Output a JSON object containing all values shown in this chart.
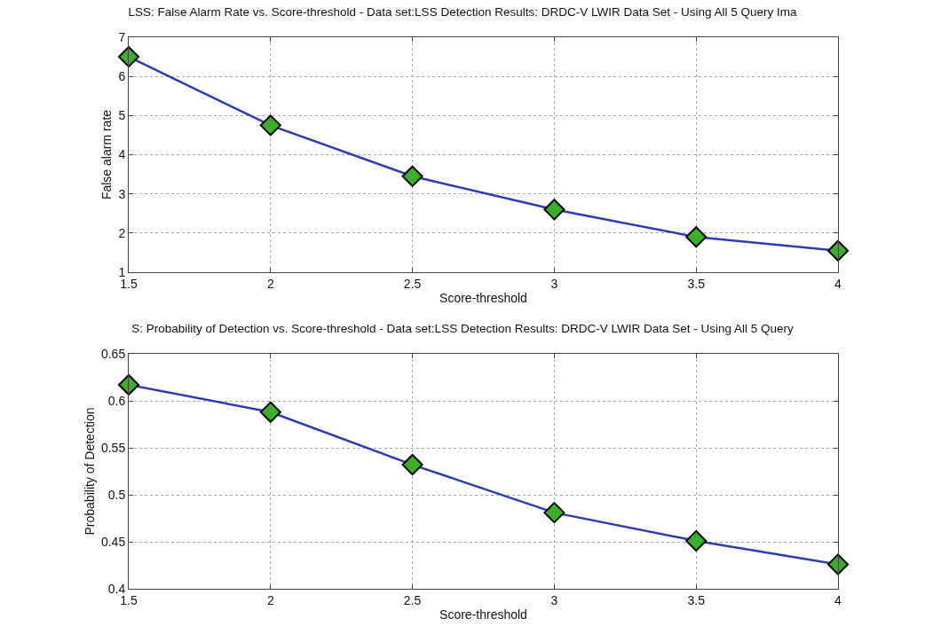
{
  "chart_data": [
    {
      "type": "line",
      "title": "LSS: False Alarm Rate vs. Score-threshold - Data set:LSS Detection Results: DRDC-V LWIR Data Set - Using All 5 Query Ima",
      "xlabel": "Score-threshold",
      "ylabel": "False alarm rate",
      "x": [
        1.5,
        2,
        2.5,
        3,
        3.5,
        4
      ],
      "series": [
        {
          "color": "#2e3cb4",
          "values": [
            6.5,
            4.75,
            3.45,
            2.6,
            1.9,
            1.55
          ]
        }
      ],
      "xlim": [
        1.5,
        4
      ],
      "xticks": [
        1.5,
        2,
        2.5,
        3,
        3.5,
        4
      ],
      "ylim": [
        1,
        7
      ],
      "yticks": [
        1,
        2,
        3,
        4,
        5,
        6,
        7
      ],
      "grid": true,
      "marker": "diamond",
      "line_style": "solid"
    },
    {
      "type": "line",
      "title": "S: Probability of Detection vs. Score-threshold - Data set:LSS Detection Results: DRDC-V LWIR Data Set - Using All 5 Query",
      "xlabel": "Score-threshold",
      "ylabel": "Probability of Detection",
      "x": [
        1.5,
        2,
        2.5,
        3,
        3.5,
        4
      ],
      "series": [
        {
          "color": "#2e3cb4",
          "values": [
            0.617,
            0.588,
            0.532,
            0.481,
            0.451,
            0.426
          ]
        }
      ],
      "xlim": [
        1.5,
        4
      ],
      "xticks": [
        1.5,
        2,
        2.5,
        3,
        3.5,
        4
      ],
      "ylim": [
        0.4,
        0.65
      ],
      "yticks": [
        0.4,
        0.45,
        0.5,
        0.55,
        0.6,
        0.65
      ],
      "grid": true,
      "marker": "diamond",
      "line_style": "solid"
    }
  ]
}
